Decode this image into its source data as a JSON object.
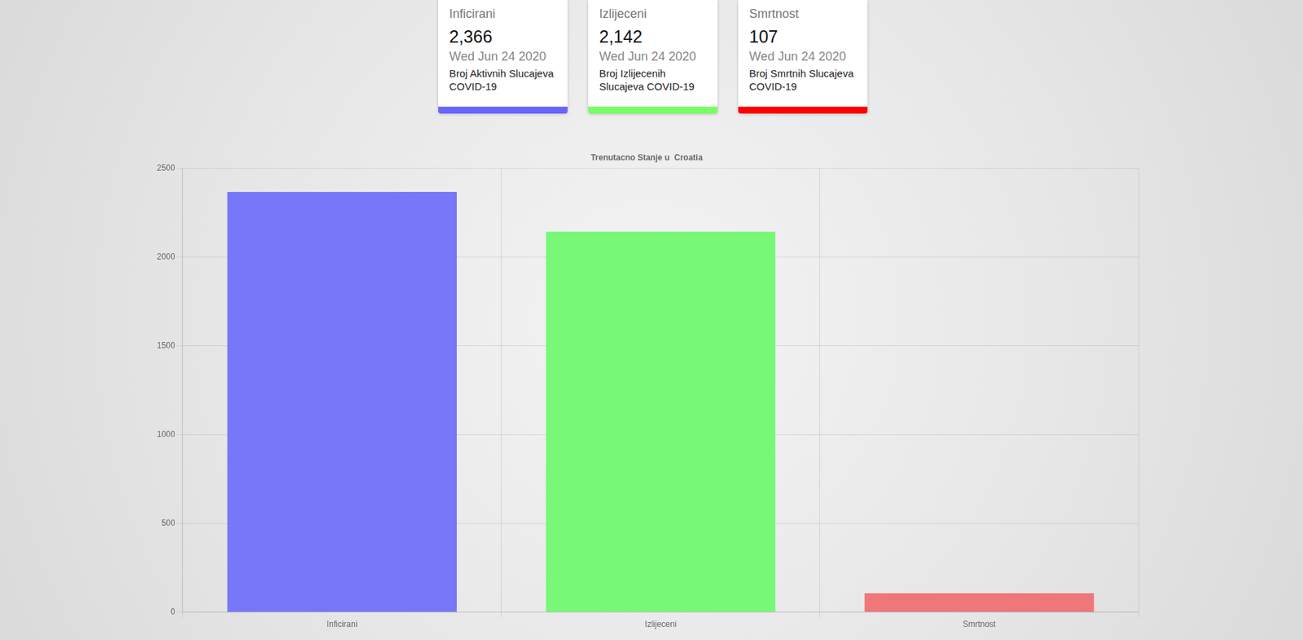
{
  "cards": [
    {
      "title": "Inficirani",
      "value": "2,366",
      "date": "Wed Jun 24 2020",
      "description": "Broj Aktivnih Slucajeva COVID-19",
      "color": "#6666ff"
    },
    {
      "title": "Izlijeceni",
      "value": "2,142",
      "date": "Wed Jun 24 2020",
      "description": "Broj Izlijecenih Slucajeva COVID-19",
      "color": "#77ff66"
    },
    {
      "title": "Smrtnost",
      "value": "107",
      "date": "Wed Jun 24 2020",
      "description": "Broj Smrtnih Slucajeva COVID-19",
      "color": "#ff0000"
    }
  ],
  "chart_data": {
    "type": "bar",
    "title": "Trenutacno Stanje u  Croatia",
    "categories": [
      "Inficirani",
      "Izlijeceni",
      "Smrtnost"
    ],
    "values": [
      2366,
      2142,
      107
    ],
    "colors": [
      "#7777f8",
      "#77f877",
      "#f07777"
    ],
    "ylim": [
      0,
      2500
    ],
    "yticks": [
      0,
      500,
      1000,
      1500,
      2000,
      2500
    ],
    "grid": true
  }
}
